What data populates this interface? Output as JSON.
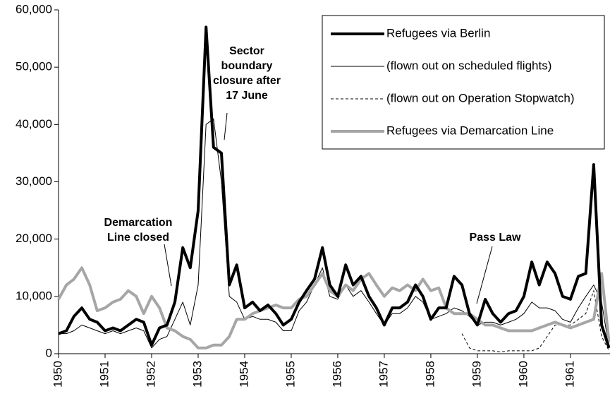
{
  "chart_data": {
    "type": "line",
    "x": [
      1950,
      1950.17,
      1950.33,
      1950.5,
      1950.67,
      1950.83,
      1951,
      1951.17,
      1951.33,
      1951.5,
      1951.67,
      1951.83,
      1952,
      1952.17,
      1952.33,
      1952.5,
      1952.67,
      1952.83,
      1953,
      1953.17,
      1953.33,
      1953.5,
      1953.67,
      1953.83,
      1954,
      1954.17,
      1954.33,
      1954.5,
      1954.67,
      1954.83,
      1955,
      1955.17,
      1955.33,
      1955.5,
      1955.67,
      1955.83,
      1956,
      1956.17,
      1956.33,
      1956.5,
      1956.67,
      1956.83,
      1957,
      1957.17,
      1957.33,
      1957.5,
      1957.67,
      1957.83,
      1958,
      1958.17,
      1958.33,
      1958.5,
      1958.67,
      1958.83,
      1959,
      1959.17,
      1959.33,
      1959.5,
      1959.67,
      1959.83,
      1960,
      1960.17,
      1960.33,
      1960.5,
      1960.67,
      1960.83,
      1961,
      1961.17,
      1961.33,
      1961.5,
      1961.67,
      1961.83
    ],
    "series": [
      {
        "name": "Refugees via Berlin",
        "color": "#000000",
        "width": 4,
        "dash": false,
        "values": [
          3500,
          4000,
          6500,
          8000,
          6000,
          5500,
          4000,
          4500,
          4000,
          5000,
          6000,
          5500,
          1500,
          4500,
          5000,
          9000,
          18500,
          15000,
          25000,
          57000,
          36000,
          35000,
          12000,
          15500,
          8000,
          9000,
          7500,
          8500,
          7000,
          5000,
          6000,
          9000,
          11000,
          13000,
          18500,
          12000,
          10000,
          15500,
          12000,
          13500,
          10000,
          8000,
          5000,
          8000,
          8000,
          9000,
          12000,
          10000,
          6000,
          8000,
          8000,
          13500,
          12000,
          7000,
          5000,
          9500,
          7000,
          5500,
          7000,
          7500,
          10000,
          16000,
          12000,
          16000,
          14000,
          10000,
          9500,
          13500,
          14000,
          33000,
          5000,
          1000
        ]
      },
      {
        "name": "(flown out on scheduled flights)",
        "color": "#000000",
        "width": 1,
        "dash": false,
        "values": [
          3500,
          3500,
          4000,
          5000,
          4500,
          4000,
          3500,
          4000,
          3500,
          4000,
          4500,
          4000,
          1000,
          2500,
          3000,
          6000,
          9000,
          5000,
          12000,
          40000,
          41000,
          30000,
          10000,
          9000,
          6000,
          6500,
          6000,
          6000,
          5500,
          4000,
          4000,
          7500,
          9000,
          12000,
          15000,
          10000,
          9500,
          12000,
          10000,
          11000,
          9000,
          7000,
          5000,
          7000,
          7000,
          8000,
          10000,
          9000,
          6000,
          6500,
          7000,
          8000,
          7500,
          6500,
          5000,
          5500,
          5500,
          5000,
          5500,
          6000,
          7000,
          9000,
          8000,
          8000,
          7500,
          6000,
          5500,
          8000,
          10000,
          12000,
          9000,
          1000
        ]
      },
      {
        "name": "(flown out on Operation Stopwatch)",
        "color": "#000000",
        "width": 1,
        "dash": true,
        "values": [
          null,
          null,
          null,
          null,
          null,
          null,
          null,
          null,
          null,
          null,
          null,
          null,
          null,
          null,
          null,
          null,
          null,
          null,
          null,
          null,
          null,
          null,
          null,
          null,
          null,
          null,
          null,
          null,
          null,
          null,
          null,
          null,
          null,
          null,
          null,
          null,
          null,
          null,
          null,
          null,
          null,
          null,
          null,
          null,
          null,
          null,
          null,
          null,
          null,
          null,
          null,
          null,
          3500,
          1000,
          500,
          500,
          500,
          300,
          500,
          500,
          500,
          500,
          1000,
          3000,
          5000,
          5000,
          5000,
          6000,
          7000,
          11000,
          3000,
          500
        ]
      },
      {
        "name": "Refugees via Demarcation Line",
        "color": "#a6a6a6",
        "width": 4,
        "dash": false,
        "values": [
          9500,
          12000,
          13000,
          15000,
          12000,
          7500,
          8000,
          9000,
          9500,
          11000,
          10000,
          7000,
          10000,
          8000,
          4500,
          4000,
          3000,
          2500,
          1000,
          1000,
          1500,
          1500,
          3000,
          6000,
          6000,
          7000,
          7500,
          8000,
          8500,
          8000,
          8000,
          9500,
          10000,
          12000,
          14000,
          11000,
          10000,
          12000,
          11000,
          13000,
          14000,
          12000,
          10000,
          11500,
          11000,
          12000,
          11000,
          13000,
          11000,
          11500,
          8000,
          7000,
          7000,
          7000,
          6000,
          5000,
          5000,
          4500,
          4000,
          4000,
          4000,
          4000,
          4500,
          5000,
          5500,
          5000,
          4500,
          5000,
          5500,
          6000,
          14000,
          2000
        ]
      }
    ],
    "xlim": [
      1950,
      1961.85
    ],
    "xticks": [
      1950,
      1951,
      1952,
      1953,
      1954,
      1955,
      1956,
      1957,
      1958,
      1959,
      1960,
      1961
    ],
    "ylim": [
      0,
      60000
    ],
    "yticks": [
      0,
      {
        "value": 10000,
        "label": "10,000"
      },
      {
        "value": 20000,
        "label": "20,000"
      },
      {
        "value": 30000,
        "label": "30,000"
      },
      {
        "value": 40000,
        "label": "40,000"
      },
      {
        "value": 50000,
        "label": "50,000"
      },
      {
        "value": 60000,
        "label": "60,000"
      }
    ],
    "legend": "upper right",
    "annotations": [
      {
        "lines": [
          "Demarcation",
          "Line closed"
        ]
      },
      {
        "lines": [
          "Sector",
          "boundary",
          "closure after",
          "17 June"
        ]
      },
      {
        "lines": [
          "Pass Law"
        ]
      }
    ]
  }
}
